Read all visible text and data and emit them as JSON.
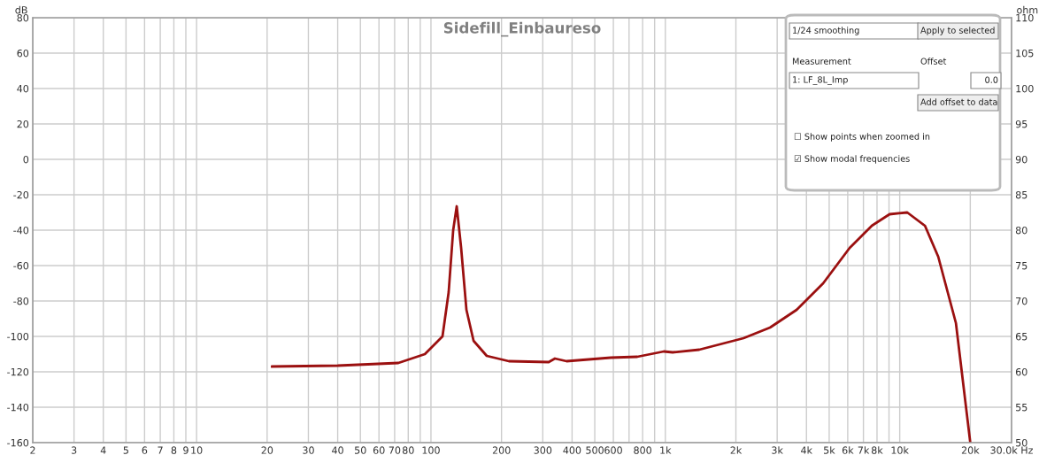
{
  "chart_data": {
    "type": "line",
    "title": "Sidefill_Einbaureso",
    "ylabel": "dB",
    "y2label": "ohm",
    "log": "x",
    "grid": true,
    "marker": "none",
    "line_style": "solid",
    "xlim": [
      2,
      30000
    ],
    "ylim": [
      -160,
      80
    ],
    "y2lim": [
      50,
      110
    ],
    "xticks": [
      2,
      3,
      4,
      5,
      6,
      7,
      8,
      9,
      10,
      20,
      30,
      40,
      50,
      60,
      70,
      80,
      {
        "value": 90,
        "label": null
      },
      100,
      200,
      300,
      400,
      500,
      600,
      {
        "value": 700,
        "label": null
      },
      800,
      {
        "value": 900,
        "label": null
      },
      {
        "value": 1000,
        "label": "1k"
      },
      {
        "value": 2000,
        "label": "2k"
      },
      {
        "value": 3000,
        "label": "3k"
      },
      {
        "value": 4000,
        "label": "4k"
      },
      {
        "value": 5000,
        "label": "5k"
      },
      {
        "value": 6000,
        "label": "6k"
      },
      {
        "value": 7000,
        "label": "7k"
      },
      {
        "value": 8000,
        "label": "8k"
      },
      {
        "value": 9000,
        "label": null
      },
      {
        "value": 10000,
        "label": "10k"
      },
      {
        "value": 20000,
        "label": "20k"
      },
      {
        "value": 30000,
        "label": "30.0k Hz"
      }
    ],
    "yticks": [
      80,
      60,
      40,
      20,
      0,
      -20,
      -40,
      -60,
      -80,
      -100,
      -120,
      -140,
      -160
    ],
    "y2ticks": [
      110,
      105,
      100,
      95,
      90,
      85,
      80,
      75,
      70,
      65,
      60,
      55,
      50
    ],
    "series": [
      {
        "color": "#9b1010",
        "x": [
          21,
          40,
          72.6,
          94.2,
          112,
          119,
          124.4,
          128.8,
          134.5,
          141.7,
          152,
          173,
          215,
          318,
          338,
          379,
          585,
          759,
          985,
          1075,
          1395,
          2156,
          2797,
          3631,
          4714,
          6116,
          7603,
          9050,
          10770,
          12815,
          14600,
          17370,
          20000
        ],
        "values": [
          -117,
          -116.5,
          -115,
          -110,
          -100,
          -75,
          -40,
          -26.5,
          -50,
          -85,
          -102.5,
          -111,
          -114,
          -114.5,
          -112.5,
          -114,
          -112,
          -111.5,
          -108.5,
          -109,
          -107.5,
          -101,
          -95,
          -85,
          -70,
          -50,
          -37.5,
          -31,
          -30,
          -37.5,
          -55,
          -92.5,
          -160
        ]
      }
    ],
    "annotations": [
      "1/24 smoothing",
      "Apply to selected",
      "Measurement",
      "Offset",
      "1: LF_8L_Imp",
      "0.0",
      "Add offset to data",
      "☐ Show points when zoomed in",
      "☑ Show modal frequencies"
    ]
  }
}
